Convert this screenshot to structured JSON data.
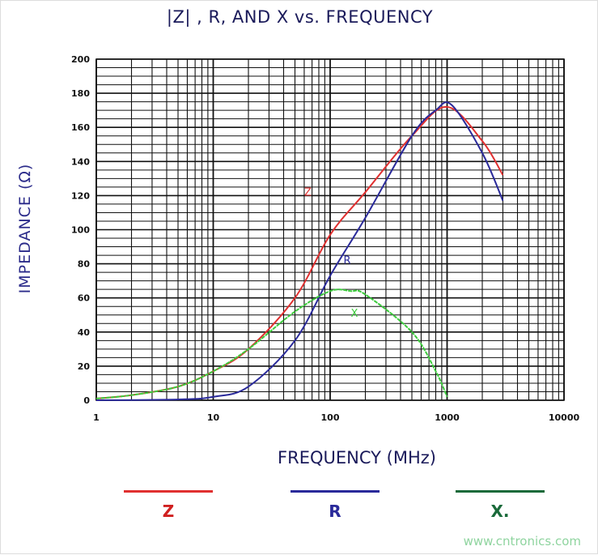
{
  "chart_data": {
    "type": "line",
    "title": "|Z| , R, AND X vs. FREQUENCY",
    "xlabel": "FREQUENCY (MHz)",
    "ylabel": "IMPEDANCE (Ω)",
    "xscale": "log",
    "xlim": [
      1,
      10000
    ],
    "ylim": [
      0,
      200
    ],
    "xticks": [
      "1",
      "10",
      "100",
      "1000",
      "10000"
    ],
    "yticks": [
      "0",
      "20",
      "40",
      "60",
      "80",
      "100",
      "120",
      "140",
      "160",
      "180",
      "200"
    ],
    "grid": true,
    "legend": "bottom",
    "series": [
      {
        "name": "Z",
        "color": "#e03030",
        "x": [
          1,
          2,
          5,
          10,
          20,
          50,
          100,
          200,
          500,
          1000,
          2000,
          3000
        ],
        "y": [
          1,
          3,
          8,
          17,
          30,
          60,
          97,
          122,
          155,
          172,
          152,
          132
        ]
      },
      {
        "name": "R",
        "color": "#2a2a9a",
        "x": [
          1,
          5,
          10,
          20,
          50,
          100,
          200,
          500,
          800,
          1100,
          2000,
          3000
        ],
        "y": [
          0,
          0.5,
          2,
          8,
          35,
          73,
          107,
          155,
          170,
          173,
          145,
          117
        ]
      },
      {
        "name": "X",
        "color": "#3ccc3c",
        "x": [
          1,
          2,
          5,
          10,
          20,
          50,
          100,
          150,
          200,
          500,
          800,
          1000
        ],
        "y": [
          1,
          3,
          8,
          17,
          30,
          52,
          64,
          64,
          62,
          40,
          17,
          2
        ]
      }
    ],
    "annotations": [
      "Z",
      "R",
      "X"
    ]
  },
  "legend_colors": {
    "Z": "#e03030",
    "R": "#2a2a9a",
    "X": "#1a6a3a"
  },
  "legend_labels": {
    "Z": "Z",
    "R": "R",
    "X": "X."
  },
  "watermark": "www.cntronics.com"
}
